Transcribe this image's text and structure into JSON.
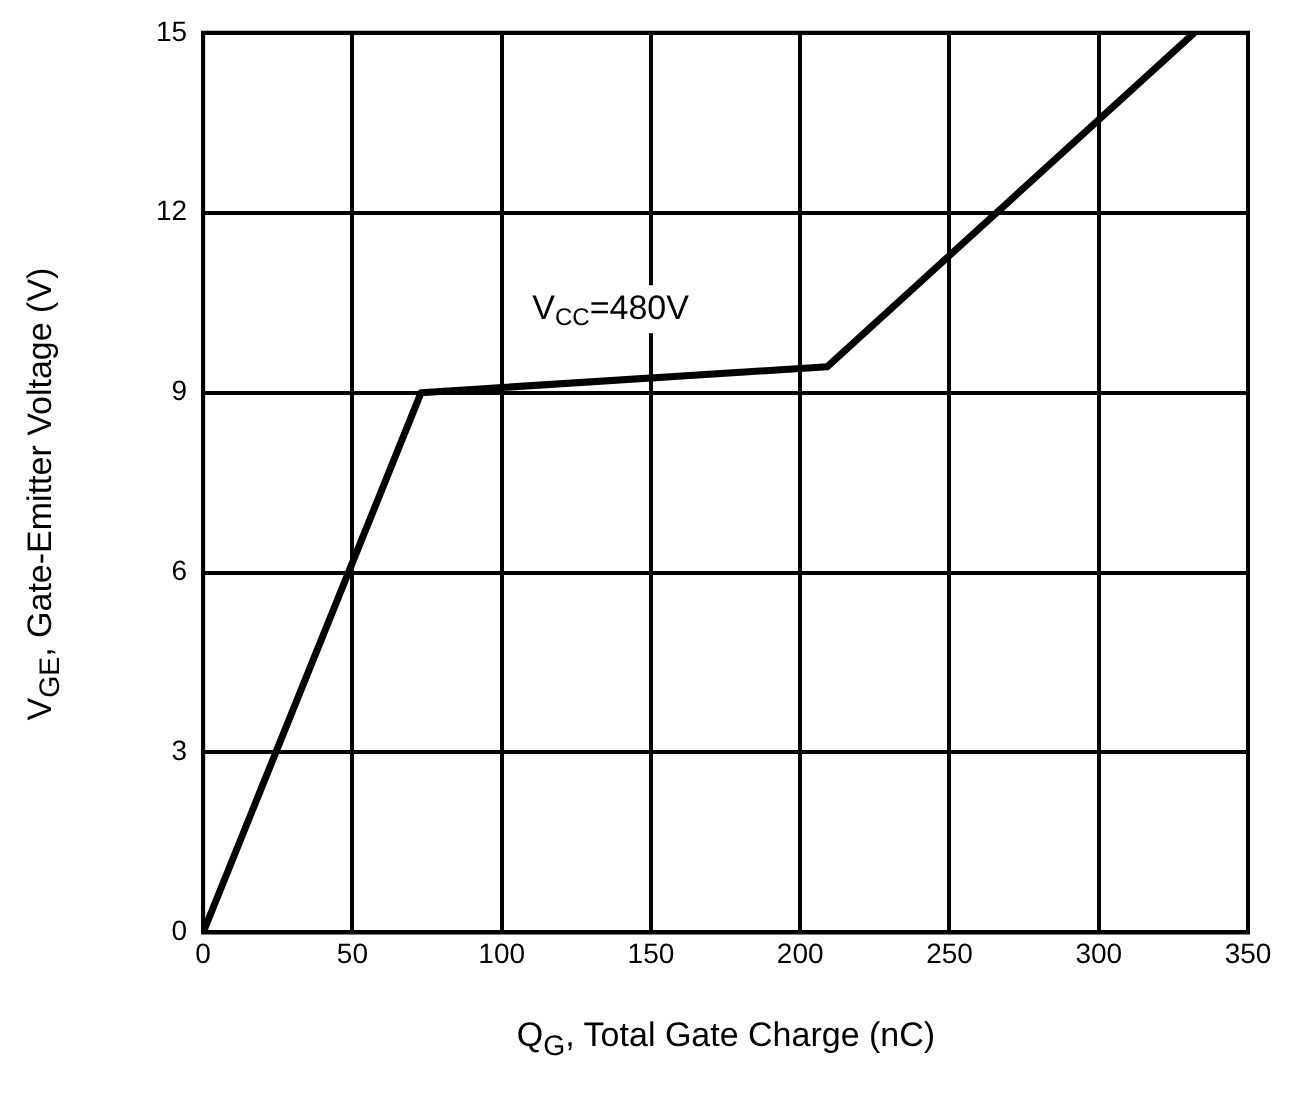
{
  "chart_data": {
    "type": "line",
    "xlabel": "Q$_{G}$, Total Gate Charge (nC)",
    "ylabel": "V$_{GE}$, Gate-Emitter Voltage (V)",
    "x": [
      0,
      73,
      209,
      332
    ],
    "series": [
      {
        "color": "#000000",
        "values": [
          0,
          9,
          9.43,
          15
        ]
      }
    ],
    "xlim": [
      0,
      350
    ],
    "xticks": [
      0,
      50,
      100,
      150,
      200,
      250,
      300,
      350
    ],
    "ylim": [
      0,
      15
    ],
    "yticks": [
      0,
      3,
      6,
      9,
      12,
      15
    ],
    "grid": true,
    "legend": false,
    "marker": "none",
    "line_style": "solid",
    "annotations": [
      "V$_{CC}$=480V"
    ]
  }
}
